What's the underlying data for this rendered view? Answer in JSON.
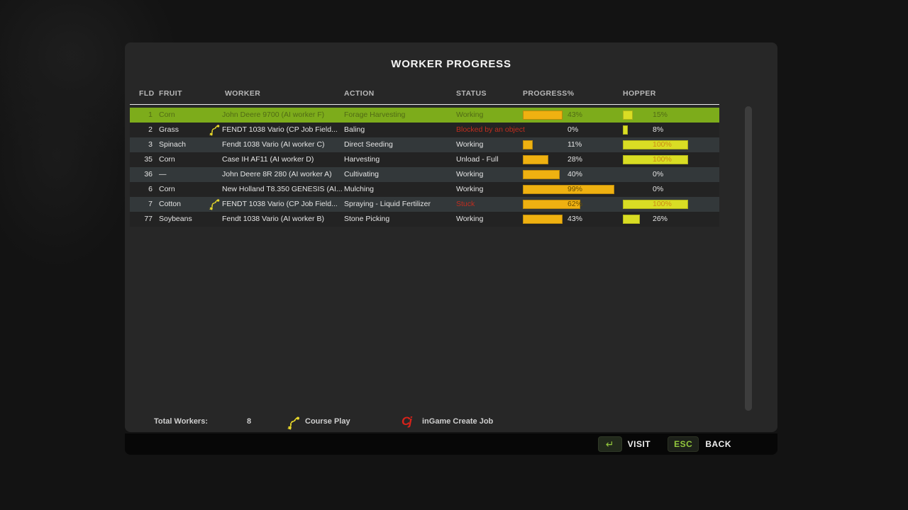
{
  "window": {
    "title": "WORKER PROGRESS"
  },
  "table": {
    "columns": [
      "FLD",
      "FRUIT",
      "WORKER",
      "ACTION",
      "STATUS",
      "PROGRESS%",
      "HOPPER"
    ],
    "rows": [
      {
        "fld": "1",
        "fruit": "Corn",
        "cp_icon": false,
        "worker": "John Deere 9700 (AI worker F)",
        "action": "Forage Harvesting",
        "status": "Working",
        "status_error": false,
        "progress": 43,
        "hopper": 15,
        "selected": true
      },
      {
        "fld": "2",
        "fruit": "Grass",
        "cp_icon": true,
        "worker": "FENDT 1038 Vario  (CP Job Field...",
        "action": "Baling",
        "status": "Blocked by an object",
        "status_error": true,
        "progress": 0,
        "hopper": 8,
        "selected": false
      },
      {
        "fld": "3",
        "fruit": "Spinach",
        "cp_icon": false,
        "worker": "Fendt 1038 Vario (AI worker C)",
        "action": "Direct Seeding",
        "status": "Working",
        "status_error": false,
        "progress": 11,
        "hopper": 100,
        "selected": false
      },
      {
        "fld": "35",
        "fruit": "Corn",
        "cp_icon": false,
        "worker": "Case IH AF11 (AI worker D)",
        "action": "Harvesting",
        "status": "Unload - Full",
        "status_error": false,
        "progress": 28,
        "hopper": 100,
        "selected": false
      },
      {
        "fld": "36",
        "fruit": "—",
        "cp_icon": false,
        "worker": "John Deere 8R 280 (AI worker A)",
        "action": "Cultivating",
        "status": "Working",
        "status_error": false,
        "progress": 40,
        "hopper": 0,
        "selected": false
      },
      {
        "fld": "6",
        "fruit": "Corn",
        "cp_icon": false,
        "worker": "New Holland T8.350 GENESIS (AI...",
        "action": "Mulching",
        "status": "Working",
        "status_error": false,
        "progress": 99,
        "hopper": 0,
        "selected": false
      },
      {
        "fld": "7",
        "fruit": "Cotton",
        "cp_icon": true,
        "worker": "FENDT 1038 Vario  (CP Job Field...",
        "action": "Spraying - Liquid Fertilizer",
        "status": "Stuck",
        "status_error": true,
        "progress": 62,
        "hopper": 100,
        "selected": false
      },
      {
        "fld": "77",
        "fruit": "Soybeans",
        "cp_icon": false,
        "worker": "Fendt 1038 Vario (AI worker B)",
        "action": "Stone Picking",
        "status": "Working",
        "status_error": false,
        "progress": 43,
        "hopper": 26,
        "selected": false
      }
    ]
  },
  "footer": {
    "total_workers_label": "Total Workers:",
    "total_workers_value": "8",
    "courseplay_label": "Course Play",
    "ingame_label": "inGame Create Job",
    "ingame_icon_text": "Cj"
  },
  "bottom_bar": {
    "visit_key_glyph": "↵",
    "visit_label": "VISIT",
    "esc_key": "ESC",
    "back_label": "BACK"
  },
  "colors": {
    "selected_row": "#7dac1b",
    "progress_bar": "#efb111",
    "hopper_bar": "#d9dd24",
    "error_text": "#c12d1f",
    "accent_green": "#93c83d",
    "panel_bg": "#272727"
  }
}
